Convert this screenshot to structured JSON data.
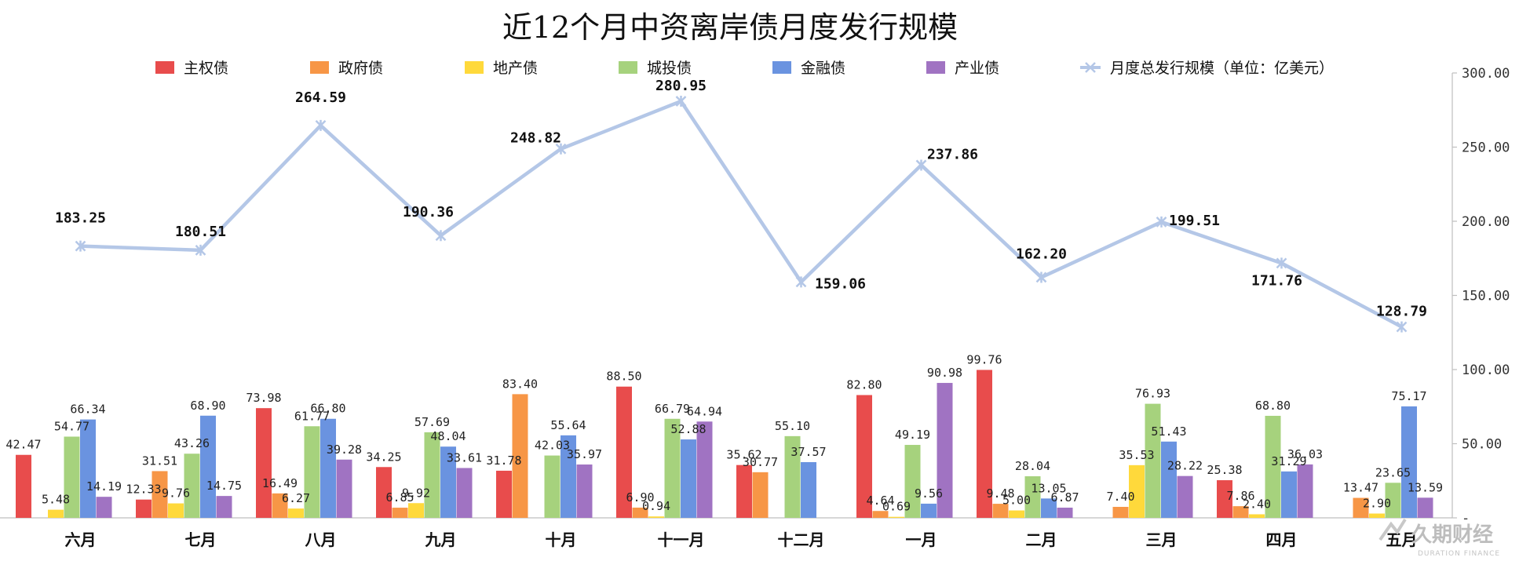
{
  "chart_data": {
    "type": "bar",
    "title": "近12个月中资离岸债月度发行规模",
    "categories": [
      "六月",
      "七月",
      "八月",
      "九月",
      "十月",
      "十一月",
      "十二月",
      "一月",
      "二月",
      "三月",
      "四月",
      "五月"
    ],
    "series": [
      {
        "name": "主权债",
        "color": "#e84c4c",
        "values": [
          42.47,
          12.33,
          73.98,
          34.25,
          31.78,
          88.5,
          35.62,
          82.8,
          99.76,
          0,
          25.38,
          0
        ],
        "labels": [
          "42.47",
          "12.33",
          "73.98",
          "34.25",
          "31.78",
          "88.50",
          "35.62",
          "82.80",
          "99.76",
          "",
          "25.38",
          ""
        ]
      },
      {
        "name": "政府债",
        "color": "#f79646",
        "values": [
          0,
          31.51,
          16.49,
          6.85,
          83.4,
          6.9,
          30.77,
          4.64,
          9.48,
          7.4,
          7.86,
          13.47
        ],
        "labels": [
          "",
          "31.51",
          "16.49",
          "6.85",
          "83.40",
          "6.90",
          "30.77",
          "4.64",
          "9.48",
          "7.40",
          "7.86",
          "13.47"
        ]
      },
      {
        "name": "地产债",
        "color": "#ffd93b",
        "values": [
          5.48,
          9.76,
          6.27,
          9.92,
          0,
          0.94,
          0,
          0.69,
          5.0,
          35.53,
          2.4,
          2.9
        ],
        "labels": [
          "5.48",
          "9.76",
          "6.27",
          "9.92",
          "",
          "0.94",
          "",
          "0.69",
          "5.00",
          "35.53",
          "2.40",
          "2.90"
        ]
      },
      {
        "name": "城投债",
        "color": "#a6d27d",
        "values": [
          54.77,
          43.26,
          61.77,
          57.69,
          42.03,
          66.79,
          55.1,
          49.19,
          28.04,
          76.93,
          68.8,
          23.65
        ],
        "labels": [
          "54.77",
          "43.26",
          "61.77",
          "57.69",
          "42.03",
          "66.79",
          "55.10",
          "49.19",
          "28.04",
          "76.93",
          "68.80",
          "23.65"
        ]
      },
      {
        "name": "金融债",
        "color": "#6a93e0",
        "values": [
          66.34,
          68.9,
          66.8,
          48.04,
          55.64,
          52.88,
          37.57,
          9.56,
          13.05,
          51.43,
          31.29,
          75.17
        ],
        "labels": [
          "66.34",
          "68.90",
          "66.80",
          "48.04",
          "55.64",
          "52.88",
          "37.57",
          "9.56",
          "13.05",
          "51.43",
          "31.29",
          "75.17"
        ]
      },
      {
        "name": "产业债",
        "color": "#a073c2",
        "values": [
          14.19,
          14.75,
          39.28,
          33.61,
          35.97,
          64.94,
          0,
          90.98,
          6.87,
          28.22,
          36.03,
          13.59
        ],
        "labels": [
          "14.19",
          "14.75",
          "39.28",
          "33.61",
          "35.97",
          "64.94",
          "",
          "90.98",
          "6.87",
          "28.22",
          "36.03",
          "13.59"
        ]
      }
    ],
    "line": {
      "name": "月度总发行规模（单位：亿美元）",
      "color": "#b4c7e7",
      "values": [
        183.25,
        180.51,
        264.59,
        190.36,
        248.82,
        280.95,
        159.06,
        237.86,
        162.2,
        199.51,
        171.76,
        128.79
      ],
      "labels": [
        "183.25",
        "180.51",
        "264.59",
        "190.36",
        "248.82",
        "280.95",
        "159.06",
        "237.86",
        "162.20",
        "199.51",
        "171.76",
        "128.79"
      ]
    },
    "yaxis": {
      "position": "right",
      "ylim": [
        0,
        300
      ],
      "ticks": [
        "-",
        "50.00",
        "100.00",
        "150.00",
        "200.00",
        "250.00",
        "300.00"
      ]
    },
    "legend_position": "top",
    "grid": false
  },
  "watermark": {
    "text": "久期财经",
    "sub": "DURATION FINANCE"
  }
}
